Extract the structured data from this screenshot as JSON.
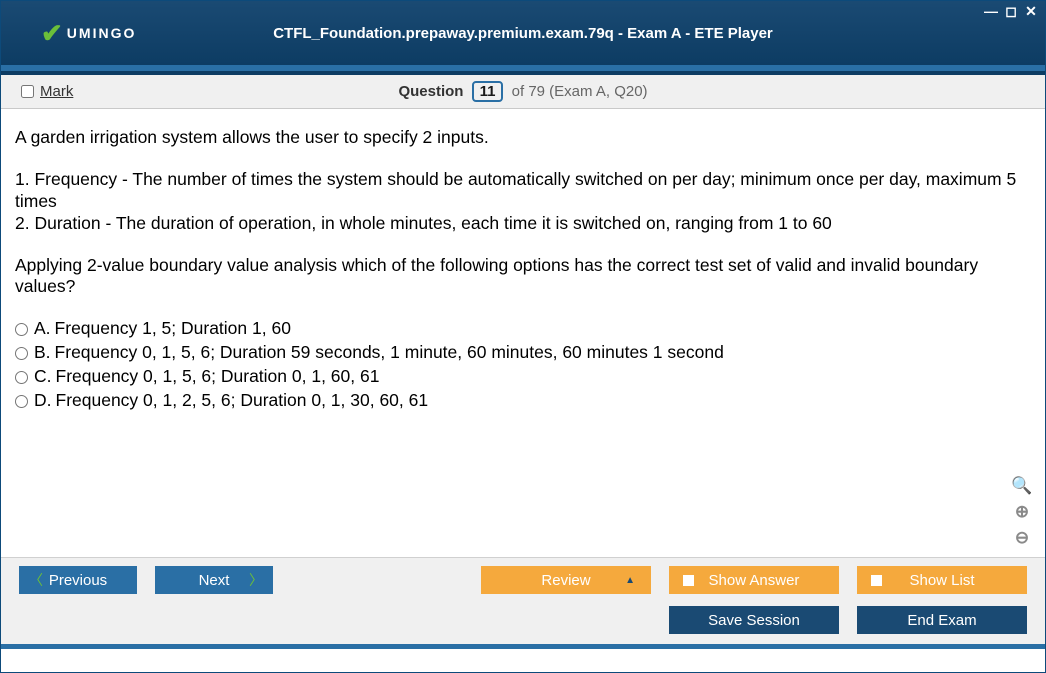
{
  "window": {
    "title": "CTFL_Foundation.prepaway.premium.exam.79q - Exam A - ETE Player",
    "brand": "UMINGO"
  },
  "question_bar": {
    "mark_label": "Mark",
    "question_label": "Question",
    "current_num": "11",
    "of_text": "of 79 (Exam A, Q20)"
  },
  "content": {
    "intro": "A garden irrigation system allows the user to specify 2 inputs.",
    "line1": "1. Frequency - The number of times the system should be automatically switched on per day; minimum once per day, maximum 5 times",
    "line2": "2. Duration - The duration of operation, in whole minutes, each time it is switched on, ranging from 1 to 60",
    "prompt": "Applying 2-value boundary value analysis which of the following options has the correct test set of valid and invalid boundary values?",
    "options": {
      "a_letter": "A.",
      "a_text": "Frequency 1, 5; Duration 1, 60",
      "b_letter": "B.",
      "b_text": "Frequency 0, 1, 5, 6; Duration 59 seconds, 1 minute, 60 minutes, 60 minutes 1 second",
      "c_letter": "C.",
      "c_text": "Frequency 0, 1, 5, 6; Duration 0, 1, 60, 61",
      "d_letter": "D.",
      "d_text": "Frequency 0, 1, 2, 5, 6; Duration 0, 1, 30, 60, 61"
    }
  },
  "buttons": {
    "previous": "Previous",
    "next": "Next",
    "review": "Review",
    "show_answer": "Show Answer",
    "show_list": "Show List",
    "save_session": "Save Session",
    "end_exam": "End Exam"
  },
  "colors": {
    "titlebar_bg": "#0d3c63",
    "accent_blue": "#2a6fa5",
    "accent_green": "#6bbf3a",
    "accent_orange": "#f5a93d",
    "panel_bg": "#f0f0f0"
  }
}
